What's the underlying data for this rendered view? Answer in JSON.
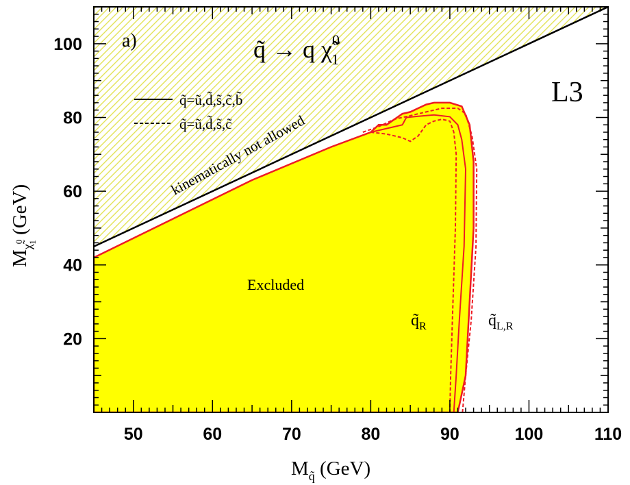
{
  "chart_data": {
    "type": "area",
    "panel_label": "a)",
    "process_title": "q̃ → q χ̃⁰₁",
    "experiment": "L3",
    "xlabel": "M_q̃ (GeV)",
    "ylabel": "M_χ̃⁰₁ (GeV)",
    "xlim": [
      45,
      110
    ],
    "ylim": [
      0,
      110
    ],
    "x_ticks": [
      50,
      60,
      70,
      80,
      90,
      100,
      110
    ],
    "y_ticks": [
      20,
      40,
      60,
      80,
      100
    ],
    "legend": [
      {
        "style": "solid",
        "label": "q̃=ũ,d̃,s̃,c̃,b̃"
      },
      {
        "style": "dashed",
        "label": "q̃=ũ,d̃,s̃,c̃"
      }
    ],
    "annotations": {
      "kinematic": "kinematically not allowed",
      "excluded": "Excluded",
      "qR": "q̃_R",
      "qLR": "q̃_L,R"
    },
    "kinematic_limit": [
      [
        45,
        45
      ],
      [
        110,
        110
      ]
    ],
    "series": [
      {
        "name": "excluded_outer",
        "style": "filled",
        "points": [
          [
            45,
            42
          ],
          [
            55,
            52.5
          ],
          [
            65,
            63
          ],
          [
            75,
            72
          ],
          [
            80,
            76
          ],
          [
            81,
            78
          ],
          [
            82,
            78
          ],
          [
            84,
            81
          ],
          [
            85,
            81.5
          ],
          [
            86,
            82.5
          ],
          [
            87,
            83.5
          ],
          [
            88,
            84
          ],
          [
            90,
            84
          ],
          [
            91.5,
            83
          ],
          [
            92.5,
            78
          ],
          [
            93,
            68
          ],
          [
            93,
            50
          ],
          [
            92.5,
            30
          ],
          [
            92,
            10
          ],
          [
            91.5,
            5
          ],
          [
            91,
            0
          ]
        ]
      },
      {
        "name": "q_R_solid",
        "style": "solid",
        "points": [
          [
            80,
            76
          ],
          [
            82,
            77
          ],
          [
            84,
            78
          ],
          [
            84.5,
            80
          ],
          [
            86,
            80.3
          ],
          [
            88,
            80.7
          ],
          [
            90,
            80.2
          ],
          [
            91,
            78
          ],
          [
            91.5,
            74
          ],
          [
            92,
            66
          ],
          [
            91.8,
            45
          ],
          [
            91.2,
            25
          ],
          [
            90.8,
            10
          ],
          [
            90.5,
            0
          ]
        ]
      },
      {
        "name": "q_R_dashed",
        "style": "dashed",
        "points": [
          [
            80,
            76
          ],
          [
            82,
            75.5
          ],
          [
            84,
            74.5
          ],
          [
            85,
            73.5
          ],
          [
            86,
            75
          ],
          [
            87,
            78
          ],
          [
            88,
            79
          ],
          [
            89,
            79.5
          ],
          [
            90,
            79
          ],
          [
            90.5,
            76
          ],
          [
            90.8,
            70
          ],
          [
            90.7,
            50
          ],
          [
            90.4,
            30
          ],
          [
            90.1,
            10
          ],
          [
            90,
            0
          ]
        ]
      },
      {
        "name": "q_LR_dashed",
        "style": "dashed",
        "points": [
          [
            79,
            76
          ],
          [
            81,
            77.5
          ],
          [
            83,
            79.5
          ],
          [
            85,
            80.5
          ],
          [
            87,
            81.5
          ],
          [
            89,
            82.5
          ],
          [
            91,
            82.5
          ],
          [
            92,
            81
          ],
          [
            92.8,
            75
          ],
          [
            93.4,
            66
          ],
          [
            93.3,
            45
          ],
          [
            92.7,
            25
          ],
          [
            92,
            10
          ],
          [
            91.6,
            0
          ]
        ]
      }
    ]
  },
  "colors": {
    "fill": "#ffff00",
    "line": "#ee1c24",
    "hatch": "#e3e35a",
    "frame": "#000000"
  }
}
